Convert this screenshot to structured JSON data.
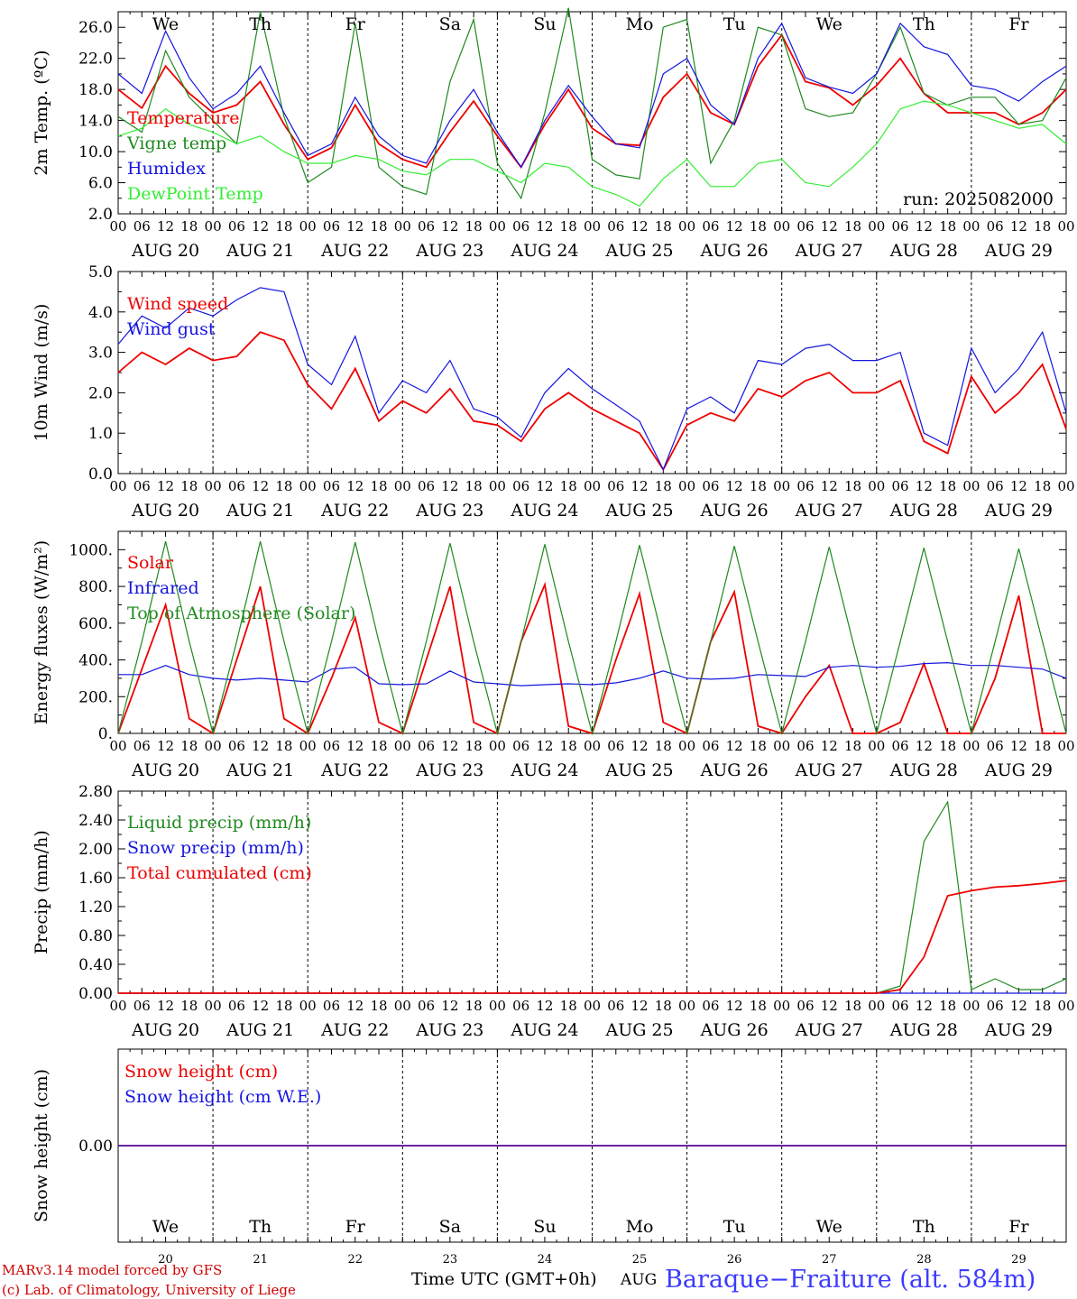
{
  "colors": {
    "red": "#ee0000",
    "green": "#1f8a1f",
    "blue": "#1515e0",
    "lightgreen": "#33ee33",
    "black": "#000000",
    "station_title": "#3b3bff"
  },
  "chart_data": [
    {
      "type": "line",
      "ylabel": "2m Temp. (ºC)",
      "ylim": [
        2.0,
        28.0
      ],
      "yticks": [
        "2.0",
        "6.0",
        "10.0",
        "14.0",
        "18.0",
        "22.0",
        "26.0"
      ],
      "run_label": "run: 2025082000",
      "x_hours": [
        0,
        6,
        12,
        18,
        24,
        30,
        36,
        42,
        48,
        54,
        60,
        66,
        72,
        78,
        84,
        90,
        96,
        102,
        108,
        114,
        120,
        126,
        132,
        138,
        144,
        150,
        156,
        162,
        168,
        174,
        180,
        186,
        192,
        198,
        204,
        210,
        216,
        222,
        228,
        234,
        240
      ],
      "series": [
        {
          "name": "Temperature",
          "color": "red",
          "values": [
            18.0,
            15.6,
            21.0,
            17.5,
            15.0,
            16.0,
            19.0,
            13.5,
            9.0,
            10.5,
            16.0,
            11.0,
            9.0,
            8.0,
            12.5,
            16.5,
            12.0,
            8.0,
            13.5,
            18.0,
            13.0,
            11.0,
            10.8,
            17.0,
            20.0,
            15.0,
            13.5,
            21.0,
            25.0,
            19.0,
            18.2,
            16.0,
            18.5,
            22.0,
            17.5,
            15.0,
            15.0,
            15.0,
            13.5,
            15.0,
            18.0
          ]
        },
        {
          "name": "Vigne temp",
          "color": "green",
          "values": [
            14.5,
            12.5,
            23.0,
            17.0,
            14.0,
            11.0,
            28.0,
            14.5,
            6.0,
            8.0,
            26.5,
            8.0,
            5.5,
            4.5,
            19.0,
            27.0,
            8.5,
            4.0,
            15.0,
            28.5,
            9.0,
            7.0,
            6.5,
            26.0,
            27.0,
            8.5,
            14.0,
            26.0,
            25.0,
            15.5,
            14.5,
            15.0,
            20.0,
            26.0,
            17.5,
            16.0,
            17.0,
            17.0,
            13.5,
            14.0,
            19.5
          ]
        },
        {
          "name": "Humidex",
          "color": "blue",
          "values": [
            20.0,
            17.5,
            25.5,
            19.5,
            15.5,
            17.5,
            21.0,
            15.0,
            9.5,
            11.0,
            17.0,
            12.0,
            9.5,
            8.5,
            14.0,
            18.0,
            12.5,
            8.0,
            14.0,
            18.5,
            14.5,
            11.0,
            10.5,
            20.0,
            22.0,
            16.0,
            13.5,
            22.0,
            26.5,
            19.5,
            18.3,
            17.5,
            20.0,
            26.5,
            23.5,
            22.5,
            18.5,
            18.0,
            16.5,
            19.0,
            21.0
          ]
        },
        {
          "name": "DewPoint Temp",
          "color": "lightgreen",
          "values": [
            12.0,
            13.0,
            15.5,
            13.5,
            12.5,
            11.0,
            12.0,
            10.0,
            8.5,
            8.5,
            9.5,
            9.0,
            7.5,
            7.0,
            9.0,
            9.0,
            7.5,
            6.0,
            8.5,
            8.0,
            5.5,
            4.5,
            3.0,
            6.5,
            9.0,
            5.5,
            5.5,
            8.5,
            9.0,
            6.0,
            5.5,
            8.0,
            11.0,
            15.5,
            16.5,
            16.0,
            15.0,
            14.0,
            13.0,
            13.5,
            11.0
          ]
        }
      ]
    },
    {
      "type": "line",
      "ylabel": "10m Wind (m/s)",
      "ylim": [
        0.0,
        5.0
      ],
      "yticks": [
        "0.0",
        "1.0",
        "2.0",
        "3.0",
        "4.0",
        "5.0"
      ],
      "x_hours": [
        0,
        6,
        12,
        18,
        24,
        30,
        36,
        42,
        48,
        54,
        60,
        66,
        72,
        78,
        84,
        90,
        96,
        102,
        108,
        114,
        120,
        126,
        132,
        138,
        144,
        150,
        156,
        162,
        168,
        174,
        180,
        186,
        192,
        198,
        204,
        210,
        216,
        222,
        228,
        234,
        240
      ],
      "series": [
        {
          "name": "Wind speed",
          "color": "red",
          "values": [
            2.5,
            3.0,
            2.7,
            3.1,
            2.8,
            2.9,
            3.5,
            3.3,
            2.2,
            1.6,
            2.6,
            1.3,
            1.8,
            1.5,
            2.1,
            1.3,
            1.2,
            0.8,
            1.6,
            2.0,
            1.6,
            1.3,
            1.0,
            0.1,
            1.2,
            1.5,
            1.3,
            2.1,
            1.9,
            2.3,
            2.5,
            2.0,
            2.0,
            2.3,
            0.8,
            0.5,
            2.4,
            1.5,
            2.0,
            2.7,
            1.1
          ]
        },
        {
          "name": "Wind gust",
          "color": "blue",
          "values": [
            3.2,
            3.9,
            3.6,
            4.1,
            3.9,
            4.3,
            4.6,
            4.5,
            2.7,
            2.2,
            3.4,
            1.5,
            2.3,
            2.0,
            2.8,
            1.6,
            1.4,
            0.9,
            2.0,
            2.6,
            2.1,
            1.7,
            1.3,
            0.1,
            1.6,
            1.9,
            1.5,
            2.8,
            2.7,
            3.1,
            3.2,
            2.8,
            2.8,
            3.0,
            1.0,
            0.7,
            3.1,
            2.0,
            2.6,
            3.5,
            1.5
          ]
        }
      ]
    },
    {
      "type": "line",
      "ylabel": "Energy fluxes (W/m²)",
      "ylim": [
        0,
        1100
      ],
      "yticks": [
        "0.",
        "200.",
        "400.",
        "600.",
        "800.",
        "1000."
      ],
      "x_hours": [
        0,
        6,
        12,
        18,
        24,
        30,
        36,
        42,
        48,
        54,
        60,
        66,
        72,
        78,
        84,
        90,
        96,
        102,
        108,
        114,
        120,
        126,
        132,
        138,
        144,
        150,
        156,
        162,
        168,
        174,
        180,
        186,
        192,
        198,
        204,
        210,
        216,
        222,
        228,
        234,
        240
      ],
      "series": [
        {
          "name": "Solar",
          "color": "red",
          "values": [
            0,
            350,
            700,
            80,
            0,
            400,
            800,
            80,
            0,
            300,
            630,
            60,
            0,
            400,
            800,
            60,
            0,
            500,
            810,
            40,
            0,
            400,
            760,
            60,
            0,
            500,
            770,
            40,
            0,
            200,
            370,
            0,
            0,
            60,
            380,
            0,
            0,
            300,
            750,
            0,
            0
          ]
        },
        {
          "name": "Infrared",
          "color": "blue",
          "values": [
            320,
            320,
            370,
            320,
            300,
            290,
            300,
            290,
            280,
            350,
            360,
            270,
            265,
            270,
            340,
            280,
            270,
            260,
            265,
            270,
            265,
            275,
            300,
            340,
            300,
            295,
            300,
            320,
            315,
            310,
            360,
            370,
            360,
            365,
            380,
            385,
            370,
            370,
            360,
            350,
            300
          ]
        },
        {
          "name": "Top of Atmosphere (Solar)",
          "color": "green",
          "values": [
            0,
            500,
            1045,
            500,
            0,
            500,
            1045,
            500,
            0,
            500,
            1040,
            500,
            0,
            500,
            1035,
            500,
            0,
            500,
            1030,
            500,
            0,
            500,
            1025,
            500,
            0,
            500,
            1020,
            500,
            0,
            500,
            1015,
            500,
            0,
            500,
            1010,
            500,
            0,
            500,
            1005,
            500,
            0
          ]
        }
      ]
    },
    {
      "type": "line",
      "ylabel": "Precip (mm/h)",
      "ylim": [
        0.0,
        2.8
      ],
      "yticks": [
        "0.00",
        "0.40",
        "0.80",
        "1.20",
        "1.60",
        "2.00",
        "2.40",
        "2.80"
      ],
      "x_hours": [
        0,
        6,
        12,
        18,
        24,
        30,
        36,
        42,
        48,
        54,
        60,
        66,
        72,
        78,
        84,
        90,
        96,
        102,
        108,
        114,
        120,
        126,
        132,
        138,
        144,
        150,
        156,
        162,
        168,
        174,
        180,
        186,
        192,
        198,
        204,
        210,
        216,
        222,
        228,
        234,
        240
      ],
      "series": [
        {
          "name": "Liquid precip (mm/h)",
          "color": "green",
          "values": [
            0,
            0,
            0,
            0,
            0,
            0,
            0,
            0,
            0,
            0,
            0,
            0,
            0,
            0,
            0,
            0,
            0,
            0,
            0,
            0,
            0,
            0,
            0,
            0,
            0,
            0,
            0,
            0,
            0,
            0,
            0,
            0,
            0,
            0.1,
            2.1,
            2.65,
            0.05,
            0.2,
            0.05,
            0.05,
            0.2
          ]
        },
        {
          "name": "Snow precip (mm/h)",
          "color": "blue",
          "values": [
            0,
            0,
            0,
            0,
            0,
            0,
            0,
            0,
            0,
            0,
            0,
            0,
            0,
            0,
            0,
            0,
            0,
            0,
            0,
            0,
            0,
            0,
            0,
            0,
            0,
            0,
            0,
            0,
            0,
            0,
            0,
            0,
            0,
            0,
            0,
            0,
            0,
            0,
            0,
            0,
            0
          ]
        },
        {
          "name": "Total cumulated (cm)",
          "color": "red",
          "values": [
            0,
            0,
            0,
            0,
            0,
            0,
            0,
            0,
            0,
            0,
            0,
            0,
            0,
            0,
            0,
            0,
            0,
            0,
            0,
            0,
            0,
            0,
            0,
            0,
            0,
            0,
            0,
            0,
            0,
            0,
            0,
            0,
            0,
            0.05,
            0.5,
            1.35,
            1.42,
            1.47,
            1.49,
            1.52,
            1.56
          ]
        }
      ]
    },
    {
      "type": "line",
      "ylabel": "Snow height (cm)",
      "ylim": [
        -1.0,
        1.0
      ],
      "yticks": [
        "0.00"
      ],
      "x_hours": [
        0,
        240
      ],
      "series": [
        {
          "name": "Snow height (cm)",
          "color": "red",
          "values": [
            0,
            0
          ]
        },
        {
          "name": "Snow height (cm W.E.)",
          "color": "blue",
          "values": [
            0,
            0
          ]
        }
      ]
    }
  ],
  "x_axis": {
    "hour_ticks": [
      "00",
      "06",
      "12",
      "18"
    ],
    "end_tick": "00",
    "date_labels": [
      "AUG 20",
      "AUG 21",
      "AUG 22",
      "AUG 23",
      "AUG 24",
      "AUG 25",
      "AUG 26",
      "AUG 27",
      "AUG 28",
      "AUG 29"
    ],
    "weekdays": [
      {
        "label": "We",
        "color": "black"
      },
      {
        "label": "Th",
        "color": "black"
      },
      {
        "label": "Fr",
        "color": "black"
      },
      {
        "label": "Sa",
        "color": "red"
      },
      {
        "label": "Su",
        "color": "red"
      },
      {
        "label": "Mo",
        "color": "black"
      },
      {
        "label": "Tu",
        "color": "black"
      },
      {
        "label": "We",
        "color": "black"
      },
      {
        "label": "Th",
        "color": "black"
      },
      {
        "label": "Fr",
        "color": "black"
      }
    ],
    "day_numbers": [
      "20",
      "21",
      "22",
      "23",
      "24",
      "25",
      "26",
      "27",
      "28",
      "29"
    ],
    "month": "AUG",
    "xlabel": "Time UTC (GMT+0h)"
  },
  "footer": {
    "line1": "MARv3.14 model forced by GFS",
    "line2": "(c) Lab. of Climatology, University of Liege",
    "station": "Baraque−Fraiture (alt. 584m)"
  }
}
